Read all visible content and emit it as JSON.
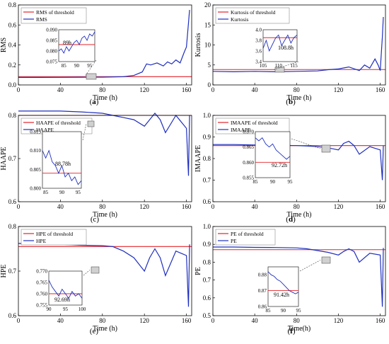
{
  "chart_data": [
    {
      "type": "line",
      "panel_label": "(a)",
      "bold_letter": "a",
      "xlabel": "Time (h)",
      "ylabel": "RMS",
      "xlim": [
        0,
        165
      ],
      "ylim": [
        0.0,
        0.8
      ],
      "xticks": [
        0,
        40,
        80,
        120,
        160
      ],
      "yticks": [
        0.0,
        0.2,
        0.4,
        0.6,
        0.8
      ],
      "ytick_labels": [
        "0.0",
        "0.2",
        "0.4",
        "0.6",
        "0.8"
      ],
      "legend": [
        "RMS of threshold",
        "RMS"
      ],
      "threshold": 0.083,
      "series": [
        {
          "name": "RMS",
          "x": [
            0,
            20,
            40,
            60,
            80,
            100,
            110,
            118,
            122,
            126,
            132,
            138,
            142,
            146,
            150,
            154,
            158,
            160,
            162,
            163
          ],
          "y": [
            0.075,
            0.075,
            0.076,
            0.077,
            0.078,
            0.082,
            0.095,
            0.13,
            0.21,
            0.2,
            0.22,
            0.19,
            0.23,
            0.21,
            0.25,
            0.22,
            0.33,
            0.38,
            0.62,
            0.75
          ]
        }
      ],
      "annotation": "89h",
      "inset": {
        "xlim": [
          83,
          97
        ],
        "ylim": [
          0.075,
          0.09
        ],
        "xticks": [
          85,
          90,
          95
        ],
        "yticks": [
          0.075,
          0.08,
          0.085,
          0.09
        ],
        "ytick_labels": [
          "0.075",
          "0.080",
          "0.085",
          "0.090"
        ],
        "threshold": 0.083,
        "x": [
          83,
          84,
          85,
          86,
          87,
          88,
          89,
          90,
          91,
          92,
          93,
          94,
          95,
          96,
          97
        ],
        "y": [
          0.08,
          0.081,
          0.079,
          0.082,
          0.08,
          0.082,
          0.084,
          0.085,
          0.083,
          0.086,
          0.087,
          0.085,
          0.088,
          0.087,
          0.089
        ]
      }
    },
    {
      "type": "line",
      "panel_label": "(b)",
      "bold_letter": "b",
      "xlabel": "Time (h)",
      "ylabel": "Kurtosis",
      "xlim": [
        0,
        165
      ],
      "ylim": [
        0,
        20
      ],
      "xticks": [
        0,
        40,
        80,
        120,
        160
      ],
      "yticks": [
        0,
        5,
        10,
        15,
        20
      ],
      "ytick_labels": [
        "0",
        "5",
        "10",
        "15",
        "20"
      ],
      "legend": [
        "Kurtosis of threshold",
        "Kurtosis"
      ],
      "threshold": 3.85,
      "series": [
        {
          "name": "Kurtosis",
          "x": [
            0,
            20,
            40,
            60,
            80,
            100,
            110,
            120,
            130,
            140,
            145,
            150,
            155,
            158,
            160,
            162,
            163
          ],
          "y": [
            3.4,
            3.3,
            3.4,
            3.3,
            3.4,
            3.5,
            3.8,
            4.0,
            4.5,
            3.6,
            5.0,
            4.2,
            6.5,
            5.0,
            3.6,
            12,
            17
          ]
        }
      ],
      "annotation": "108.8h",
      "inset": {
        "xlim": [
          105,
          116
        ],
        "ylim": [
          3.4,
          4.0
        ],
        "xticks": [
          105,
          110,
          115
        ],
        "yticks": [
          3.4,
          3.6,
          3.8,
          4.0
        ],
        "ytick_labels": [
          "3.4",
          "3.6",
          "3.8",
          "4.0"
        ],
        "threshold": 3.85,
        "x": [
          105,
          106,
          107,
          108,
          109,
          110,
          111,
          112,
          113,
          114,
          115,
          116
        ],
        "y": [
          3.65,
          3.8,
          3.6,
          3.72,
          3.84,
          3.9,
          3.7,
          3.8,
          3.9,
          3.75,
          3.85,
          3.9
        ]
      }
    },
    {
      "type": "line",
      "panel_label": "(c)",
      "bold_letter": "",
      "xlabel": "Time (h)",
      "ylabel": "HAAPE",
      "xlim": [
        0,
        165
      ],
      "ylim": [
        0.6,
        0.8
      ],
      "xticks": [
        0,
        40,
        80,
        120,
        160
      ],
      "yticks": [
        0.6,
        0.7,
        0.8
      ],
      "ytick_labels": [
        "0.6",
        "0.7",
        "0.8"
      ],
      "legend": [
        "HAAPE of threshold",
        "HAAPE"
      ],
      "threshold": 0.8,
      "series": [
        {
          "name": "HAAPE",
          "x": [
            0,
            20,
            40,
            60,
            80,
            90,
            100,
            110,
            120,
            125,
            130,
            135,
            140,
            150,
            160,
            162,
            163
          ],
          "y": [
            0.81,
            0.81,
            0.81,
            0.808,
            0.805,
            0.8,
            0.795,
            0.79,
            0.775,
            0.79,
            0.805,
            0.79,
            0.76,
            0.8,
            0.77,
            0.66,
            0.8
          ]
        }
      ],
      "annotation": "88.78h",
      "inset": {
        "xlim": [
          84,
          96
        ],
        "ylim": [
          0.8,
          0.815
        ],
        "xticks": [
          85,
          90,
          95
        ],
        "yticks": [
          0.8,
          0.805,
          0.81,
          0.815
        ],
        "ytick_labels": [
          "0.800",
          "0.805",
          "0.810",
          "0.815"
        ],
        "threshold": 0.804,
        "x": [
          84,
          85,
          86,
          87,
          88,
          89,
          90,
          91,
          92,
          93,
          94,
          95,
          96
        ],
        "y": [
          0.81,
          0.808,
          0.81,
          0.807,
          0.806,
          0.804,
          0.806,
          0.803,
          0.804,
          0.802,
          0.803,
          0.801,
          0.802
        ]
      }
    },
    {
      "type": "line",
      "panel_label": "(d)",
      "bold_letter": "d",
      "xlabel": "Time (h)",
      "ylabel": "IMAAPE",
      "xlim": [
        0,
        165
      ],
      "ylim": [
        0.6,
        1.0
      ],
      "xticks": [
        0,
        40,
        80,
        120,
        160
      ],
      "yticks": [
        0.6,
        0.7,
        0.8,
        0.9,
        1.0
      ],
      "ytick_labels": [
        "0.6",
        "0.7",
        "0.8",
        "0.9",
        "1.0"
      ],
      "legend": [
        "IMAAPE of threshold",
        "IMAAPE"
      ],
      "threshold": 0.86,
      "series": [
        {
          "name": "IMAAPE",
          "x": [
            0,
            20,
            40,
            60,
            80,
            90,
            100,
            110,
            120,
            125,
            130,
            135,
            140,
            150,
            160,
            162,
            163
          ],
          "y": [
            0.865,
            0.865,
            0.863,
            0.862,
            0.86,
            0.858,
            0.855,
            0.85,
            0.84,
            0.87,
            0.88,
            0.86,
            0.82,
            0.855,
            0.84,
            0.7,
            0.86
          ]
        }
      ],
      "annotation": "92.72h",
      "inset": {
        "xlim": [
          85,
          95
        ],
        "ylim": [
          0.855,
          0.87
        ],
        "xticks": [
          85,
          90,
          95
        ],
        "yticks": [
          0.855,
          0.86,
          0.865,
          0.87
        ],
        "ytick_labels": [
          "0.855",
          "0.860",
          "0.865",
          "0.870"
        ],
        "threshold": 0.86,
        "x": [
          85,
          86,
          87,
          88,
          89,
          90,
          91,
          92,
          93,
          94,
          95
        ],
        "y": [
          0.868,
          0.867,
          0.868,
          0.866,
          0.865,
          0.866,
          0.864,
          0.863,
          0.862,
          0.861,
          0.862
        ]
      }
    },
    {
      "type": "line",
      "panel_label": "(e)",
      "bold_letter": "",
      "xlabel": "Time (h)",
      "ylabel": "HPE",
      "xlim": [
        0,
        165
      ],
      "ylim": [
        0.6,
        0.8
      ],
      "xticks": [
        0,
        40,
        80,
        120,
        160
      ],
      "yticks": [
        0.6,
        0.7,
        0.8
      ],
      "ytick_labels": [
        "0.6",
        "0.7",
        "0.8"
      ],
      "legend": [
        "HPE of threshold",
        "HPE"
      ],
      "threshold": 0.755,
      "series": [
        {
          "name": "HPE",
          "x": [
            0,
            20,
            40,
            60,
            80,
            90,
            100,
            110,
            120,
            125,
            130,
            135,
            140,
            150,
            160,
            162,
            163
          ],
          "y": [
            0.762,
            0.76,
            0.76,
            0.758,
            0.757,
            0.755,
            0.745,
            0.73,
            0.7,
            0.73,
            0.75,
            0.73,
            0.69,
            0.745,
            0.735,
            0.62,
            0.76
          ]
        }
      ],
      "annotation": "92.69h",
      "inset": {
        "xlim": [
          90,
          100
        ],
        "ylim": [
          0.755,
          0.77
        ],
        "xticks": [
          90,
          95,
          100
        ],
        "yticks": [
          0.755,
          0.76,
          0.765,
          0.77
        ],
        "ytick_labels": [
          "0.755",
          "0.760",
          "0.765",
          "0.770"
        ],
        "threshold": 0.76,
        "x": [
          90,
          91,
          92,
          93,
          94,
          95,
          96,
          97,
          98,
          99,
          100
        ],
        "y": [
          0.766,
          0.763,
          0.761,
          0.759,
          0.762,
          0.76,
          0.758,
          0.761,
          0.759,
          0.76,
          0.758
        ]
      }
    },
    {
      "type": "line",
      "panel_label": "(f)",
      "bold_letter": "f",
      "xlabel": "Time(h)",
      "ylabel": "PE",
      "xlim": [
        0,
        165
      ],
      "ylim": [
        0.5,
        1.0
      ],
      "xticks": [
        0,
        40,
        80,
        120,
        160
      ],
      "yticks": [
        0.5,
        0.6,
        0.7,
        0.8,
        0.9,
        1.0
      ],
      "ytick_labels": [
        "0.5",
        "0.6",
        "0.7",
        "0.8",
        "0.9",
        "1.0"
      ],
      "legend": [
        "PE of threshold",
        "PE"
      ],
      "threshold": 0.87,
      "series": [
        {
          "name": "PE",
          "x": [
            0,
            20,
            40,
            60,
            80,
            90,
            100,
            110,
            120,
            125,
            130,
            135,
            140,
            150,
            160,
            162,
            163
          ],
          "y": [
            0.885,
            0.885,
            0.883,
            0.882,
            0.88,
            0.875,
            0.865,
            0.855,
            0.84,
            0.86,
            0.875,
            0.86,
            0.8,
            0.85,
            0.84,
            0.55,
            0.88
          ]
        }
      ],
      "annotation": "91.42h",
      "inset": {
        "xlim": [
          85,
          95
        ],
        "ylim": [
          0.86,
          0.885
        ],
        "xticks": [
          85,
          90,
          95
        ],
        "yticks": [
          0.86,
          0.87,
          0.88
        ],
        "ytick_labels": [
          "0.86",
          "0.87",
          "0.88"
        ],
        "threshold": 0.87,
        "x": [
          85,
          86,
          87,
          88,
          89,
          90,
          91,
          92,
          93,
          94,
          95
        ],
        "y": [
          0.882,
          0.88,
          0.879,
          0.877,
          0.876,
          0.874,
          0.872,
          0.87,
          0.869,
          0.868,
          0.869
        ]
      }
    }
  ]
}
